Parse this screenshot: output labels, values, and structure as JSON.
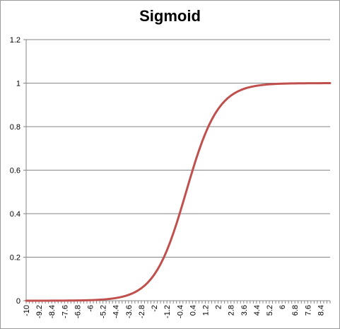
{
  "chart_data": {
    "type": "line",
    "title": "Sigmoid",
    "xlabel": "",
    "ylabel": "",
    "ylim": [
      0,
      1.2
    ],
    "yticks": [
      "0",
      "0.2",
      "0.4",
      "0.6",
      "0.8",
      "1",
      "1.2"
    ],
    "x_tick_labels": [
      "-10",
      "-9.2",
      "-8.4",
      "-7.6",
      "-6.8",
      "-6",
      "-5.2",
      "-4.4",
      "-3.6",
      "-2.8",
      "-2",
      "-1.2",
      "-0.4",
      "0.4",
      "1.2",
      "2",
      "2.8",
      "3.6",
      "4.4",
      "5.2",
      "6",
      "6.8",
      "7.6",
      "8.4"
    ],
    "x_range": [
      -10,
      9.0
    ],
    "x_step": 0.2,
    "grid": "horizontal",
    "legend": "none",
    "series": [
      {
        "color": "#c0504d",
        "function": "1/(1+exp(-x))",
        "x": [
          -10,
          -9,
          -8,
          -7,
          -6,
          -5,
          -4,
          -3.6,
          -3.2,
          -2.8,
          -2.4,
          -2,
          -1.6,
          -1.2,
          -0.8,
          -0.4,
          0,
          0.4,
          0.8,
          1.2,
          1.6,
          2,
          2.4,
          2.8,
          3.2,
          3.6,
          4,
          5,
          6,
          7,
          8,
          9
        ],
        "values": [
          5e-05,
          0.0001,
          0.0003,
          0.0009,
          0.0025,
          0.0067,
          0.018,
          0.027,
          0.039,
          0.057,
          0.083,
          0.119,
          0.168,
          0.231,
          0.31,
          0.401,
          0.5,
          0.599,
          0.69,
          0.769,
          0.832,
          0.881,
          0.917,
          0.943,
          0.961,
          0.973,
          0.982,
          0.9933,
          0.9975,
          0.9991,
          0.9997,
          0.9999
        ]
      }
    ]
  }
}
